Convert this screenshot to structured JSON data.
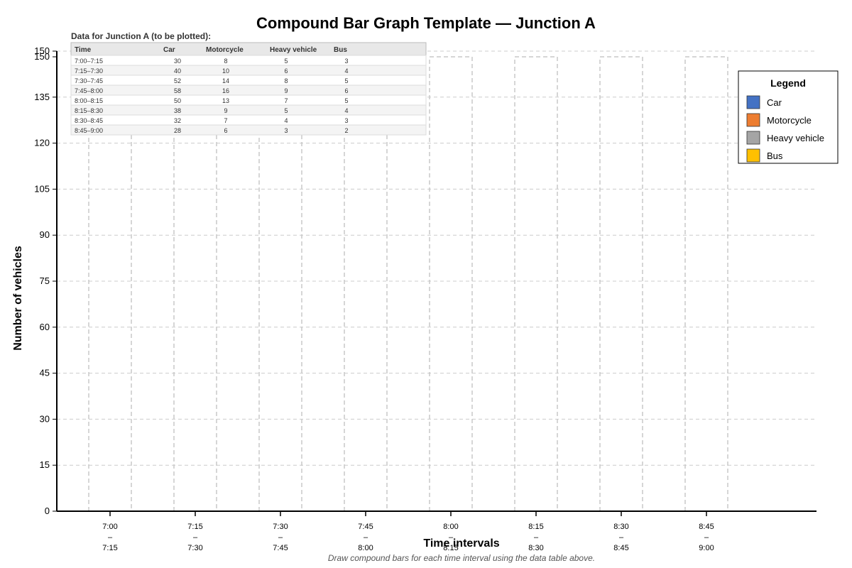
{
  "chart_data": {
    "type": "bar",
    "stacked": true,
    "title": "Compound Bar Graph Template — Junction A",
    "xlabel": "Time intervals",
    "ylabel": "Number of vehicles",
    "ylim": [
      0,
      150
    ],
    "yticks": [
      0,
      15,
      30,
      45,
      60,
      75,
      90,
      105,
      120,
      135,
      150
    ],
    "grid": true,
    "categories": [
      "7:00–7:15",
      "7:15–7:30",
      "7:30–7:45",
      "7:45–8:00",
      "8:00–8:15",
      "8:15–8:30",
      "8:30–8:45",
      "8:45–9:00"
    ],
    "category_labels": [
      [
        "7:00",
        "–",
        "7:15"
      ],
      [
        "7:15",
        "–",
        "7:30"
      ],
      [
        "7:30",
        "–",
        "7:45"
      ],
      [
        "7:45",
        "–",
        "8:00"
      ],
      [
        "8:00",
        "–",
        "8:15"
      ],
      [
        "8:15",
        "–",
        "8:30"
      ],
      [
        "8:30",
        "–",
        "8:45"
      ],
      [
        "8:45",
        "–",
        "9:00"
      ]
    ],
    "bars_drawn": false,
    "bar_template_height": 150,
    "series": [
      {
        "name": "Car",
        "color": "#4472C4",
        "values": [
          30,
          40,
          52,
          58,
          50,
          38,
          32,
          28
        ]
      },
      {
        "name": "Motorcycle",
        "color": "#ED7D31",
        "values": [
          8,
          10,
          14,
          16,
          13,
          9,
          7,
          6
        ]
      },
      {
        "name": "Heavy vehicle",
        "color": "#A5A5A5",
        "values": [
          5,
          6,
          8,
          9,
          7,
          5,
          4,
          3
        ]
      },
      {
        "name": "Bus",
        "color": "#FFC000",
        "values": [
          3,
          4,
          5,
          6,
          5,
          4,
          3,
          2
        ]
      }
    ],
    "legend": {
      "title": "Legend",
      "position": "top-right"
    },
    "table": {
      "title": "Data for Junction A (to be plotted):",
      "headers": [
        "Time",
        "Car",
        "Motorcycle",
        "Heavy vehicle",
        "Bus"
      ],
      "rows": [
        [
          "7:00–7:15",
          "30",
          "8",
          "5",
          "3"
        ],
        [
          "7:15–7:30",
          "40",
          "10",
          "6",
          "4"
        ],
        [
          "7:30–7:45",
          "52",
          "14",
          "8",
          "5"
        ],
        [
          "7:45–8:00",
          "58",
          "16",
          "9",
          "6"
        ],
        [
          "8:00–8:15",
          "50",
          "13",
          "7",
          "5"
        ],
        [
          "8:15–8:30",
          "38",
          "9",
          "5",
          "4"
        ],
        [
          "8:30–8:45",
          "32",
          "7",
          "4",
          "3"
        ],
        [
          "8:45–9:00",
          "28",
          "6",
          "3",
          "2"
        ]
      ]
    },
    "caption": "Draw compound bars for each time interval using the data table above."
  }
}
